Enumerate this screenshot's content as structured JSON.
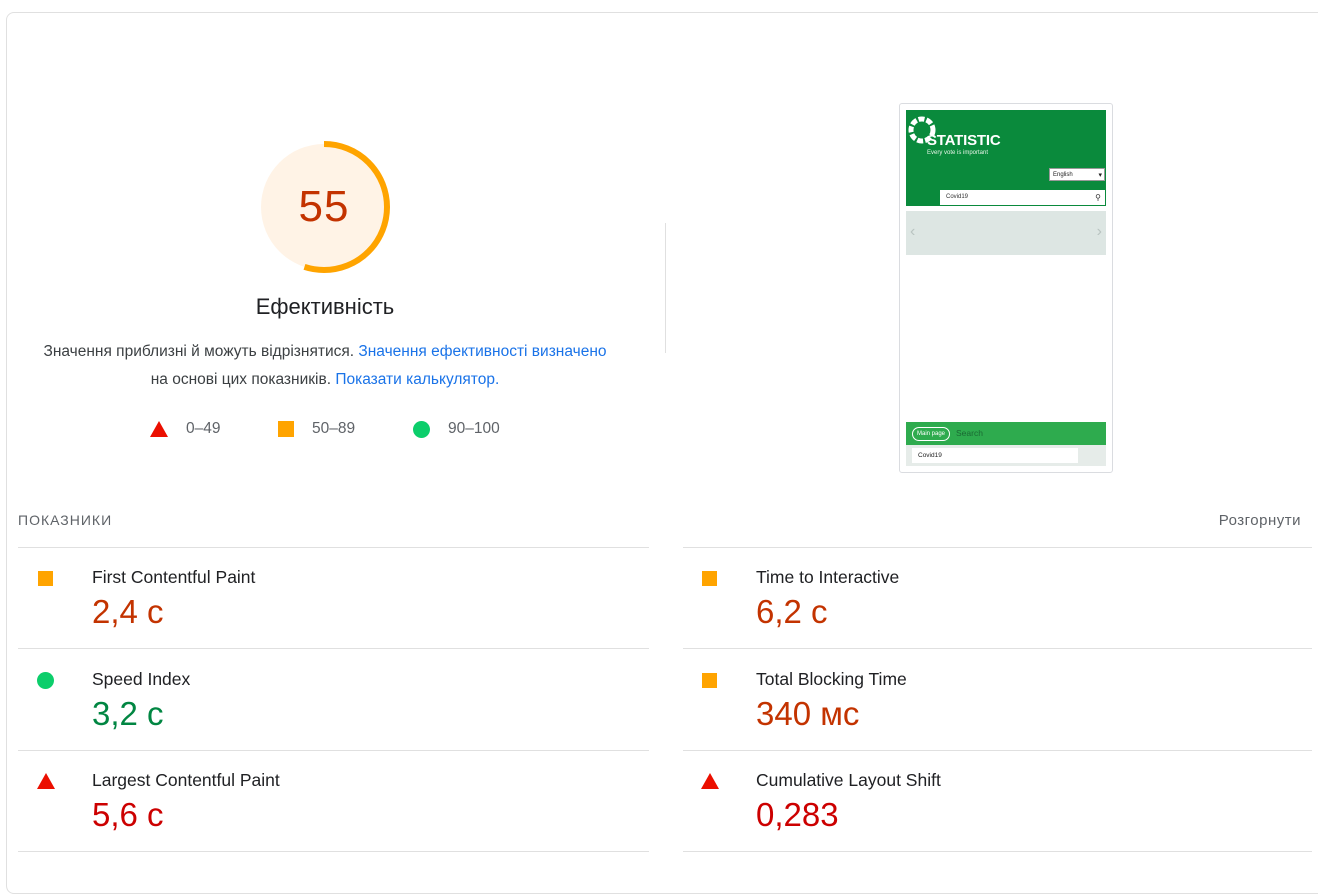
{
  "summary": {
    "score": "55",
    "score_fraction": 0.55,
    "category_title": "Ефективність",
    "description_text_1": "Значення приблизні й можуть відрізнятися.",
    "description_link_1": "Значення ефективності визначено",
    "description_text_2": "на основі цих показників.",
    "description_link_2": "Показати калькулятор.",
    "legend": [
      {
        "label": "0–49",
        "shape": "triangle-icon",
        "color": "#eb0f00"
      },
      {
        "label": "50–89",
        "shape": "square-icon",
        "color": "#ffa400"
      },
      {
        "label": "90–100",
        "shape": "circle-icon",
        "color": "#0cce6b"
      }
    ],
    "gauge_color": "#ffa400",
    "gauge_bg": "#fff3e6"
  },
  "screenshot": {
    "site_title": "STATISTIC",
    "site_tagline": "Every vote is important",
    "language": "English",
    "search_value": "Covid19",
    "main_page_button": "Main page",
    "search_heading": "Search",
    "bottom_search_value": "Covid19"
  },
  "metrics": {
    "header": "ПОКАЗНИКИ",
    "expand_label": "Розгорнути",
    "items": [
      {
        "label": "First Contentful Paint",
        "value": "2,4 с",
        "rating": "average"
      },
      {
        "label": "Time to Interactive",
        "value": "6,2 с",
        "rating": "average"
      },
      {
        "label": "Speed Index",
        "value": "3,2 с",
        "rating": "pass"
      },
      {
        "label": "Total Blocking Time",
        "value": "340 мс",
        "rating": "average"
      },
      {
        "label": "Largest Contentful Paint",
        "value": "5,6 с",
        "rating": "fail"
      },
      {
        "label": "Cumulative Layout Shift",
        "value": "0,283",
        "rating": "fail"
      }
    ]
  }
}
